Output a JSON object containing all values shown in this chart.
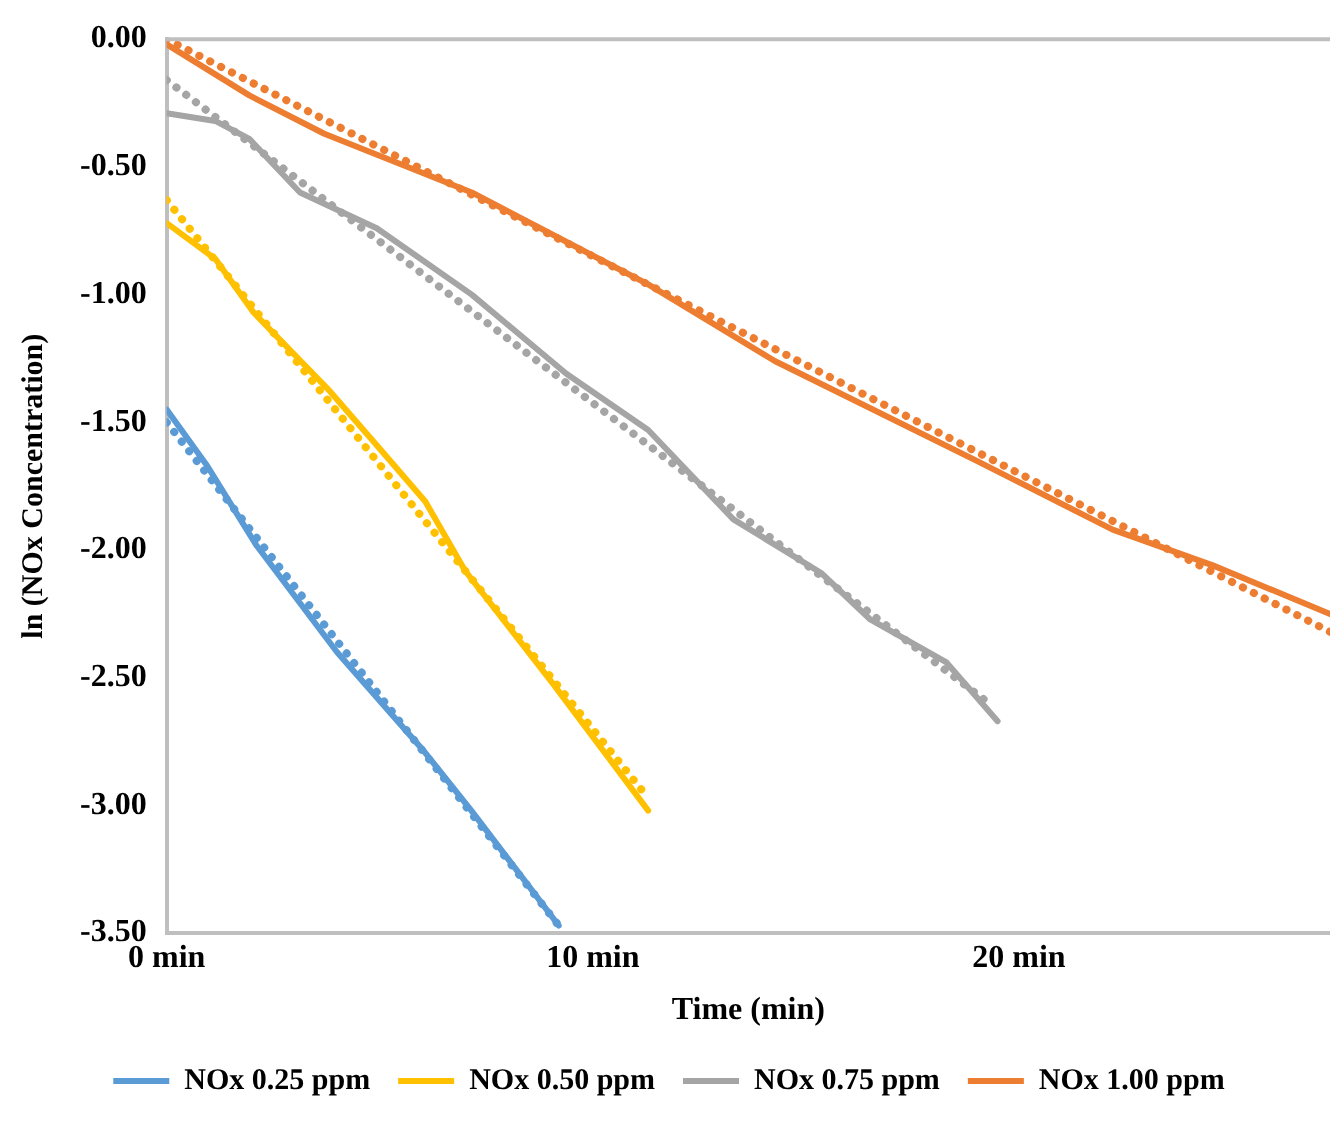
{
  "chart_data": {
    "type": "line",
    "xlabel": "Time (min)",
    "ylabel": "ln (NOx Concentration)",
    "xlim": [
      0,
      27.3
    ],
    "xticks": [
      {
        "value": 0,
        "label": "0 min"
      },
      {
        "value": 10,
        "label": "10 min"
      },
      {
        "value": 20,
        "label": "20 min"
      }
    ],
    "ylim": [
      -3.5,
      0
    ],
    "yticks": [
      {
        "value": 0,
        "label": "0.00"
      },
      {
        "value": -0.5,
        "label": "-0.50"
      },
      {
        "value": -1,
        "label": "-1.00"
      },
      {
        "value": -1.5,
        "label": "-1.50"
      },
      {
        "value": -2,
        "label": "-2.00"
      },
      {
        "value": -2.5,
        "label": "-2.50"
      },
      {
        "value": -3,
        "label": "-3.00"
      },
      {
        "value": -3.5,
        "label": "-3.50"
      }
    ],
    "grid": false,
    "legend": "bottom",
    "marker": "none",
    "line_style": "solid",
    "series": [
      {
        "name": "NOx 0.25 ppm",
        "color": "#5b9bd5",
        "x": [
          0,
          0.95,
          2.1,
          4.0,
          6.05,
          7.15,
          9.2
        ],
        "values": [
          -1.45,
          -1.67,
          -1.98,
          -2.4,
          -2.79,
          -3.02,
          -3.47
        ]
      },
      {
        "name": "NOx 0.50 ppm",
        "color": "#ffc000",
        "x": [
          0,
          1.14,
          2.04,
          3.84,
          4.93,
          6.07,
          7.0,
          9.05,
          11.3
        ],
        "values": [
          -0.72,
          -0.86,
          -1.07,
          -1.38,
          -1.59,
          -1.81,
          -2.08,
          -2.52,
          -3.02
        ]
      },
      {
        "name": "NOx 0.75 ppm",
        "color": "#a5a5a5",
        "x": [
          0,
          1.14,
          1.94,
          3.13,
          4.93,
          7.16,
          9.38,
          11.3,
          13.3,
          15.36,
          16.5,
          18.3,
          19.5
        ],
        "values": [
          -0.29,
          -0.32,
          -0.39,
          -0.6,
          -0.74,
          -1.0,
          -1.31,
          -1.53,
          -1.88,
          -2.09,
          -2.27,
          -2.44,
          -2.67
        ]
      },
      {
        "name": "NOx 1.00 ppm",
        "color": "#ed7d31",
        "x": [
          0,
          1.94,
          3.7,
          7.16,
          11.3,
          14.27,
          19.0,
          22.2,
          24.55,
          27.3
        ],
        "values": [
          -0.02,
          -0.22,
          -0.37,
          -0.6,
          -0.96,
          -1.26,
          -1.65,
          -1.92,
          -2.06,
          -2.25
        ]
      },
      {
        "type": "line",
        "line_style": "dotted",
        "color": "#5b9bd5",
        "x": [
          0,
          9.2
        ],
        "values": [
          -1.5,
          -3.47
        ]
      },
      {
        "type": "line",
        "line_style": "dotted",
        "color": "#ffc000",
        "x": [
          0,
          11.2
        ],
        "values": [
          -0.63,
          -2.95
        ]
      },
      {
        "type": "line",
        "line_style": "dotted",
        "color": "#a5a5a5",
        "x": [
          0,
          19.3
        ],
        "values": [
          -0.16,
          -2.6
        ]
      },
      {
        "type": "line",
        "line_style": "dotted",
        "color": "#ed7d31",
        "x": [
          0,
          27.3
        ],
        "values": [
          0,
          -2.32
        ]
      }
    ]
  }
}
